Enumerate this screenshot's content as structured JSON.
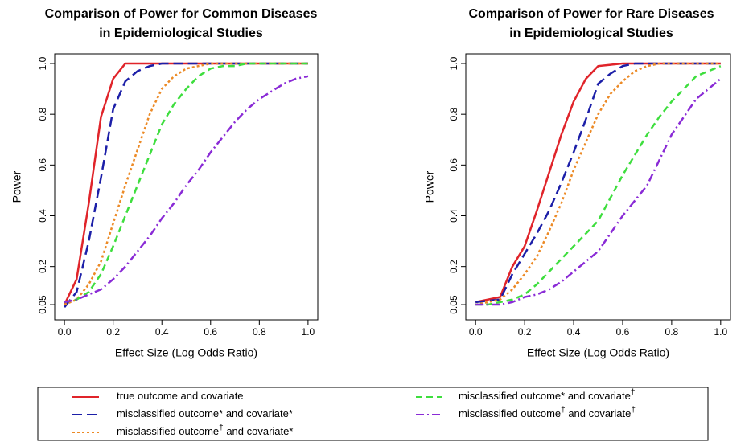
{
  "chart_data": [
    {
      "type": "line",
      "title": [
        "Comparison of Power for Common Diseases",
        "in Epidemiological Studies"
      ],
      "x_label": "Effect Size (Log Odds Ratio)",
      "y_label": "Power",
      "x": [
        0,
        0.05,
        0.1,
        0.15,
        0.2,
        0.25,
        0.3,
        0.35,
        0.4,
        0.45,
        0.5,
        0.55,
        0.6,
        0.65,
        0.7,
        0.75,
        0.8,
        0.85,
        0.9,
        0.95,
        1.0
      ],
      "xlim": [
        -0.04,
        1.04
      ],
      "ylim": [
        -0.01,
        1.038
      ],
      "xticks": [
        {
          "value": 0,
          "label": "0.0"
        },
        0.2,
        0.4,
        0.6,
        0.8,
        {
          "value": 1,
          "label": "1.0"
        }
      ],
      "yticks": [
        0.05,
        0.2,
        0.4,
        0.6,
        0.8,
        {
          "value": 1,
          "label": "1.0"
        }
      ],
      "series": [
        {
          "values": [
            0.05,
            0.15,
            0.45,
            0.79,
            0.94,
            1.0,
            1.0,
            1.0,
            1.0,
            1.0,
            1.0,
            1.0,
            1.0,
            1.0,
            1.0,
            1.0,
            1.0,
            1.0,
            1.0,
            1.0,
            1.0
          ]
        },
        {
          "values": [
            0.04,
            0.1,
            0.3,
            0.55,
            0.82,
            0.93,
            0.97,
            0.99,
            1.0,
            1.0,
            1.0,
            1.0,
            1.0,
            1.0,
            1.0,
            1.0,
            1.0,
            1.0,
            1.0,
            1.0,
            1.0
          ]
        },
        {
          "values": [
            0.05,
            0.07,
            0.13,
            0.22,
            0.37,
            0.52,
            0.66,
            0.8,
            0.9,
            0.95,
            0.98,
            0.99,
            1.0,
            1.0,
            1.0,
            1.0,
            1.0,
            1.0,
            1.0,
            1.0,
            1.0
          ]
        },
        {
          "values": [
            0.06,
            0.07,
            0.1,
            0.17,
            0.28,
            0.4,
            0.52,
            0.64,
            0.76,
            0.84,
            0.9,
            0.95,
            0.98,
            0.99,
            0.99,
            1.0,
            1.0,
            1.0,
            1.0,
            1.0,
            1.0
          ]
        },
        {
          "values": [
            0.06,
            0.07,
            0.09,
            0.11,
            0.15,
            0.2,
            0.26,
            0.32,
            0.39,
            0.45,
            0.52,
            0.58,
            0.65,
            0.71,
            0.77,
            0.82,
            0.86,
            0.89,
            0.92,
            0.94,
            0.95
          ]
        }
      ]
    },
    {
      "type": "line",
      "title": [
        "Comparison of Power for Rare Diseases",
        "in Epidemiological Studies"
      ],
      "x_label": "Effect Size (Log Odds Ratio)",
      "y_label": "Power",
      "x": [
        0,
        0.05,
        0.1,
        0.15,
        0.2,
        0.25,
        0.3,
        0.35,
        0.4,
        0.45,
        0.5,
        0.55,
        0.6,
        0.65,
        0.7,
        0.75,
        0.8,
        0.85,
        0.9,
        0.95,
        1.0
      ],
      "xlim": [
        -0.04,
        1.04
      ],
      "ylim": [
        -0.01,
        1.038
      ],
      "xticks": [
        {
          "value": 0,
          "label": "0.0"
        },
        0.2,
        0.4,
        0.6,
        0.8,
        {
          "value": 1,
          "label": "1.0"
        }
      ],
      "yticks": [
        0.05,
        0.2,
        0.4,
        0.6,
        0.8,
        {
          "value": 1,
          "label": "1.0"
        }
      ],
      "series": [
        {
          "values": [
            0.06,
            0.07,
            0.08,
            0.2,
            0.28,
            0.42,
            0.57,
            0.72,
            0.85,
            0.94,
            0.99,
            0.995,
            1.0,
            1.0,
            1.0,
            1.0,
            1.0,
            1.0,
            1.0,
            1.0,
            1.0
          ]
        },
        {
          "values": [
            0.06,
            0.065,
            0.07,
            0.17,
            0.25,
            0.33,
            0.42,
            0.53,
            0.65,
            0.78,
            0.92,
            0.96,
            0.99,
            1.0,
            1.0,
            1.0,
            1.0,
            1.0,
            1.0,
            1.0,
            1.0
          ]
        },
        {
          "values": [
            0.05,
            0.06,
            0.07,
            0.11,
            0.17,
            0.24,
            0.34,
            0.45,
            0.58,
            0.69,
            0.8,
            0.88,
            0.93,
            0.97,
            0.99,
            1.0,
            1.0,
            1.0,
            1.0,
            1.0,
            1.0
          ]
        },
        {
          "values": [
            0.05,
            0.05,
            0.06,
            0.07,
            0.09,
            0.13,
            0.18,
            0.23,
            0.28,
            0.33,
            0.38,
            0.47,
            0.56,
            0.64,
            0.72,
            0.79,
            0.85,
            0.9,
            0.95,
            0.97,
            0.99
          ]
        },
        {
          "values": [
            0.05,
            0.05,
            0.05,
            0.06,
            0.08,
            0.09,
            0.11,
            0.14,
            0.18,
            0.22,
            0.26,
            0.33,
            0.4,
            0.46,
            0.52,
            0.62,
            0.72,
            0.79,
            0.86,
            0.9,
            0.94
          ]
        }
      ]
    }
  ],
  "legend": {
    "items": [
      {
        "name": "true outcome and covariate",
        "color": "#e0242a",
        "dash": "solid"
      },
      {
        "name": "misclassified outcome* and covariate*",
        "color": "#1c1fa8",
        "dash": "longdash"
      },
      {
        "name": "misclassified outcome† and covariate*",
        "color": "#ec8a26",
        "dash": "dotted"
      },
      {
        "name": "misclassified outcome* and covariate†",
        "color": "#3ede3e",
        "dash": "dashed"
      },
      {
        "name": "misclassified outcome† and covariate†",
        "color": "#8a2bd6",
        "dash": "dotdash"
      }
    ]
  }
}
